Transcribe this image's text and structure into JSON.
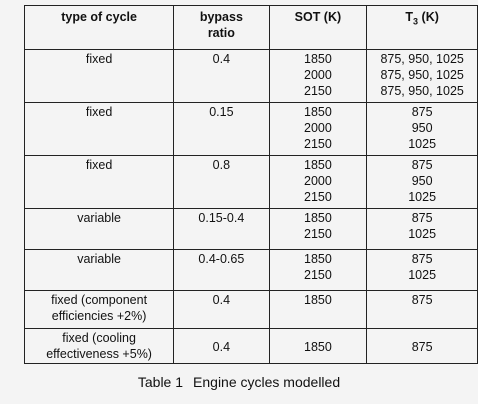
{
  "table": {
    "headers": {
      "col1": "type of cycle",
      "col2_line1": "bypass",
      "col2_line2": "ratio",
      "col3": "SOT (K)",
      "col4_main": "T",
      "col4_sub": "3",
      "col4_unit": " (K)"
    },
    "rows": [
      {
        "type": [
          "fixed"
        ],
        "bypass": "0.4",
        "sot": [
          "1850",
          "2000",
          "2150"
        ],
        "t3": [
          "875, 950, 1025",
          "875, 950, 1025",
          "875, 950, 1025"
        ]
      },
      {
        "type": [
          "fixed"
        ],
        "bypass": "0.15",
        "sot": [
          "1850",
          "2000",
          "2150"
        ],
        "t3": [
          "875",
          "950",
          "1025"
        ]
      },
      {
        "type": [
          "fixed"
        ],
        "bypass": "0.8",
        "sot": [
          "1850",
          "2000",
          "2150"
        ],
        "t3": [
          "875",
          "950",
          "1025"
        ]
      },
      {
        "type": [
          "variable"
        ],
        "bypass": "0.15-0.4",
        "sot": [
          "1850",
          "2150"
        ],
        "t3": [
          "875",
          "1025"
        ]
      },
      {
        "type": [
          "variable"
        ],
        "bypass": "0.4-0.65",
        "sot": [
          "1850",
          "2150"
        ],
        "t3": [
          "875",
          "1025"
        ]
      },
      {
        "type": [
          "fixed (component",
          "efficiencies +2%)"
        ],
        "bypass": "0.4",
        "sot": [
          "1850"
        ],
        "t3": [
          "875"
        ]
      },
      {
        "type": [
          "fixed (cooling",
          "effectiveness +5%)"
        ],
        "bypass": "0.4",
        "sot": [
          "1850"
        ],
        "t3": [
          "875"
        ]
      }
    ]
  },
  "caption": {
    "label": "Table 1",
    "text": "Engine cycles modelled"
  }
}
